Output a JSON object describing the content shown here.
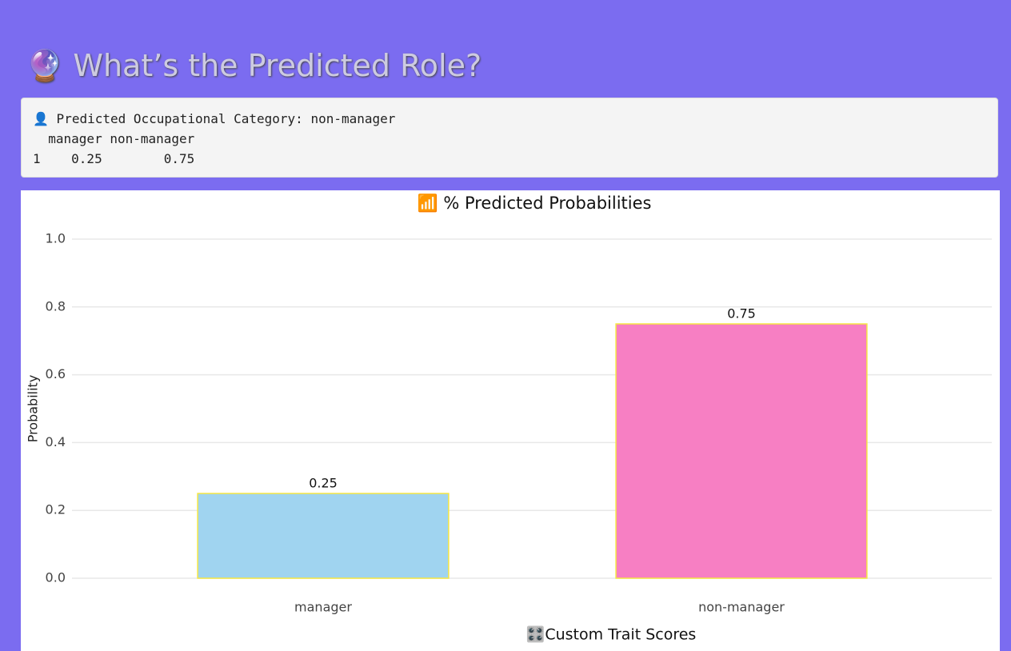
{
  "header": {
    "title": "🔮 What’s the Predicted Role?"
  },
  "output": {
    "lines": [
      "👤 Predicted Occupational Category: non-manager",
      "  manager non-manager",
      "1    0.25        0.75"
    ]
  },
  "chart_data": {
    "type": "bar",
    "title": "📶 % Predicted Probabilities",
    "y_label": "Probability",
    "categories": [
      "manager",
      "non-manager"
    ],
    "values": [
      0.25,
      0.75
    ],
    "colors": [
      "#a0d4f0",
      "#f77fc3"
    ],
    "edge_color": "#f5e642",
    "ylim": [
      0,
      1.0
    ],
    "yticks": [
      {
        "value": 0,
        "label": "0.0"
      },
      0.2,
      0.4,
      0.6,
      0.8,
      {
        "value": 1.0,
        "label": "1.0"
      }
    ],
    "grid": true
  },
  "next_section": {
    "title": "🎛️Custom Trait Scores"
  }
}
